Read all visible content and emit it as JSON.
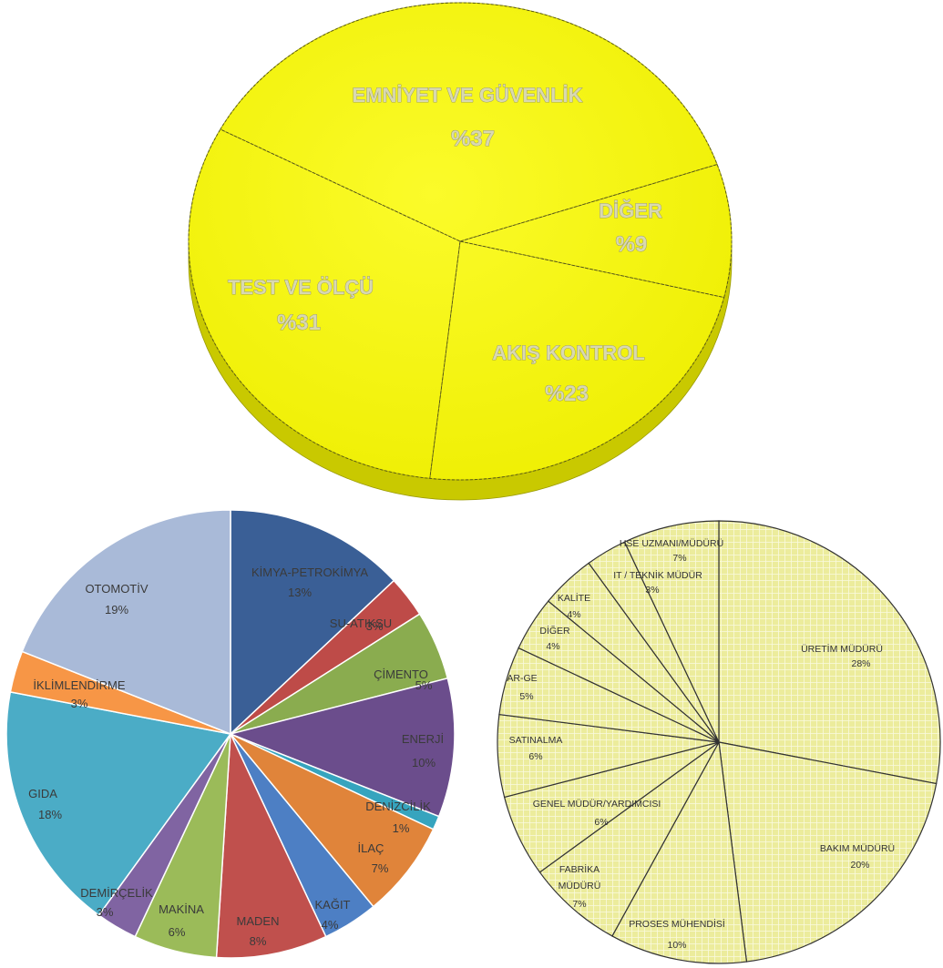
{
  "chart_data": [
    {
      "type": "pie",
      "title": "",
      "style": "3d",
      "slice_color": "#f2f200",
      "slices": [
        {
          "label": "EMNİYET VE GÜVENLİK",
          "value_text": "%37",
          "value": 37
        },
        {
          "label": "DİĞER",
          "value_text": "%9",
          "value": 9
        },
        {
          "label": "AKIŞ KONTROL",
          "value_text": "%23",
          "value": 23
        },
        {
          "label": "TEST VE ÖLÇÜ",
          "value_text": "%31",
          "value": 31
        }
      ]
    },
    {
      "type": "pie",
      "title": "",
      "slices": [
        {
          "label": "KİMYA-PETROKİMYA",
          "value_text": "13%",
          "value": 13,
          "color": "#3a5f96"
        },
        {
          "label": "SU-ATIKSU",
          "value_text": "3%",
          "value": 3,
          "color": "#be4b48"
        },
        {
          "label": "ÇİMENTO",
          "value_text": "5%",
          "value": 5,
          "color": "#8aac4f"
        },
        {
          "label": "ENERJİ",
          "value_text": "10%",
          "value": 10,
          "color": "#6b4d8c"
        },
        {
          "label": "DENİZCİLİK",
          "value_text": "1%",
          "value": 1,
          "color": "#36a4be"
        },
        {
          "label": "İLAÇ",
          "value_text": "7%",
          "value": 7,
          "color": "#e0843a"
        },
        {
          "label": "KAĞIT",
          "value_text": "4%",
          "value": 4,
          "color": "#4d7fc4"
        },
        {
          "label": "MADEN",
          "value_text": "8%",
          "value": 8,
          "color": "#c0504d"
        },
        {
          "label": "MAKİNA",
          "value_text": "6%",
          "value": 6,
          "color": "#9bbb59"
        },
        {
          "label": "DEMİRÇELİK",
          "value_text": "3%",
          "value": 3,
          "color": "#8064a2"
        },
        {
          "label": "GIDA",
          "value_text": "18%",
          "value": 18,
          "color": "#4bacc6"
        },
        {
          "label": "İKLİMLENDİRME",
          "value_text": "3%",
          "value": 3,
          "color": "#f79646"
        },
        {
          "label": "OTOMOTİV",
          "value_text": "19%",
          "value": 19,
          "color": "#a9bad8"
        }
      ]
    },
    {
      "type": "pie",
      "title": "",
      "slice_color": "#eeeea8",
      "hatch_color": "#f6f6d0",
      "slices": [
        {
          "label": "ÜRETİM MÜDÜRÜ",
          "value_text": "28%",
          "value": 28
        },
        {
          "label": "BAKIM MÜDÜRÜ",
          "value_text": "20%",
          "value": 20
        },
        {
          "label": "PROSES MÜHENDİSİ",
          "value_text": "10%",
          "value": 10
        },
        {
          "label": "FABRİKA MÜDÜRÜ",
          "value_text": "7%",
          "value": 7
        },
        {
          "label": "GENEL MÜDÜR/YARDIMCISI",
          "value_text": "6%",
          "value": 6
        },
        {
          "label": "SATINALMA",
          "value_text": "6%",
          "value": 6
        },
        {
          "label": "AR-GE",
          "value_text": "5%",
          "value": 5
        },
        {
          "label": "DİĞER",
          "value_text": "4%",
          "value": 4
        },
        {
          "label": "KALİTE",
          "value_text": "4%",
          "value": 4
        },
        {
          "label": "IT / TEKNİK MÜDÜR",
          "value_text": "3%",
          "value": 3
        },
        {
          "label": "HSE UZMANI/MÜDÜRÜ",
          "value_text": "7%",
          "value": 7
        }
      ]
    }
  ]
}
